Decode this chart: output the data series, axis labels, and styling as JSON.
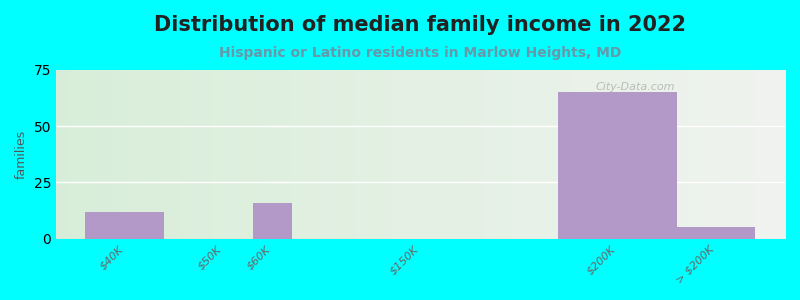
{
  "title": "Distribution of median family income in 2022",
  "subtitle": "Hispanic or Latino residents in Marlow Heights, MD",
  "ylabel": "families",
  "categories": [
    "$40K",
    "$50K",
    "$60K",
    "$150K",
    "$200K",
    "> $200K"
  ],
  "values": [
    12,
    0,
    16,
    0,
    65,
    5
  ],
  "bar_color": "#b399c8",
  "outer_bg": "#00ffff",
  "ylim": [
    0,
    75
  ],
  "yticks": [
    0,
    25,
    50,
    75
  ],
  "watermark": "City-Data.com",
  "title_fontsize": 15,
  "subtitle_fontsize": 10,
  "title_color": "#222222",
  "subtitle_color": "#6699aa",
  "bg_left": "#d8eeda",
  "bg_right": "#f0f0e8"
}
